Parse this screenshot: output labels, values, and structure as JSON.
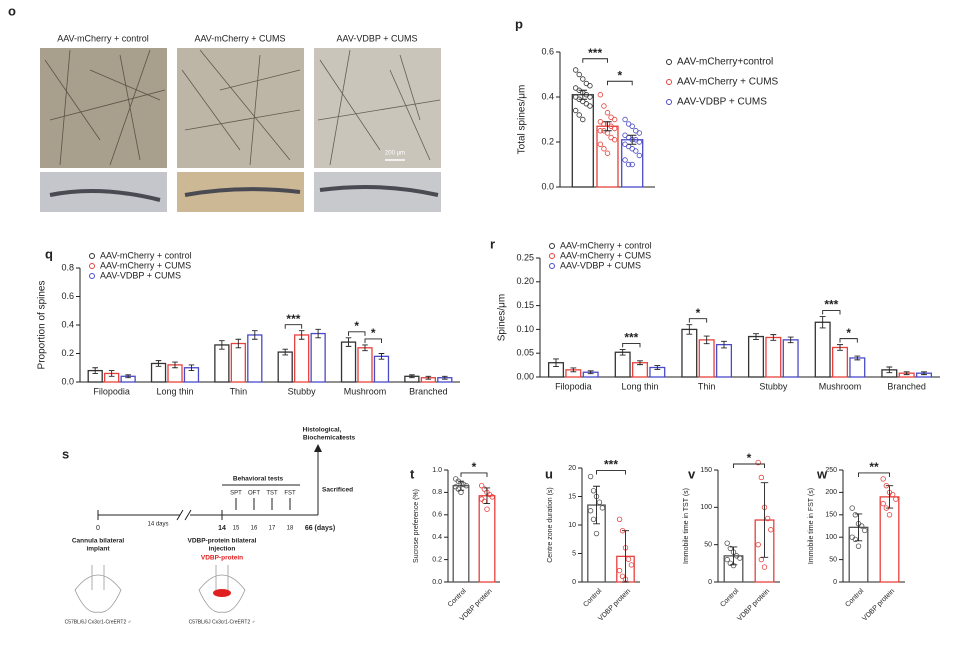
{
  "panel_o": {
    "panel": "o",
    "images": [
      {
        "label": "AAV-mCherry + control"
      },
      {
        "label": "AAV-mCherry + CUMS"
      },
      {
        "label": "AAV-VDBP + CUMS"
      }
    ],
    "scale_label": "200 μm"
  },
  "panel_s": {
    "panel": "s",
    "day_start": "0",
    "gap_label": "14 days",
    "day_inject": "14",
    "test_days": [
      "15",
      "16",
      "17",
      "18"
    ],
    "day_end": "66 (days)",
    "behavioral_label": "Behavioral tests",
    "tests": [
      "SPT",
      "OFT",
      "TST",
      "FST"
    ],
    "end_test_lines": [
      "Histological,",
      "Biochemical",
      "tests"
    ],
    "sacrificed": "Sacrificed",
    "implant_lines": [
      "Cannula bilateral",
      "implant"
    ],
    "injection_lines": [
      "VDBP-protein bilateral",
      "injection"
    ],
    "injection_drug": "VDBP-protein",
    "mouse_label": "C57BL/6J Cx3cr1-CreERT2 ♂"
  },
  "chart_data": [
    {
      "type": "bar",
      "panel": "p",
      "y_label": "Total spines/μm",
      "categories": [
        null
      ],
      "series": [
        {
          "name": "AAV-mCherry+control",
          "color": "#333333",
          "values": [
            0.41
          ],
          "errors": [
            0.02
          ],
          "points": [
            [
              0.52,
              0.5,
              0.48,
              0.46,
              0.45,
              0.44,
              0.43,
              0.42,
              0.41,
              0.4,
              0.4,
              0.39,
              0.38,
              0.37,
              0.36,
              0.34,
              0.32,
              0.3
            ]
          ]
        },
        {
          "name": "AAV-mCherry + CUMS",
          "color": "#e8413c",
          "values": [
            0.27
          ],
          "errors": [
            0.02
          ],
          "points": [
            [
              0.41,
              0.36,
              0.33,
              0.31,
              0.3,
              0.29,
              0.28,
              0.28,
              0.27,
              0.26,
              0.25,
              0.25,
              0.24,
              0.22,
              0.21,
              0.19,
              0.17,
              0.15
            ]
          ]
        },
        {
          "name": "AAV-VDBP + CUMS",
          "color": "#4a4ac8",
          "values": [
            0.21
          ],
          "errors": [
            0.02
          ],
          "points": [
            [
              0.3,
              0.28,
              0.27,
              0.25,
              0.24,
              0.23,
              0.22,
              0.21,
              0.21,
              0.2,
              0.19,
              0.18,
              0.17,
              0.16,
              0.14,
              0.12,
              0.1,
              0.1
            ]
          ]
        }
      ],
      "ylim": [
        0,
        0.6
      ],
      "yticks": [
        {
          "value": 0,
          "label": "0.0"
        },
        {
          "value": 0.2,
          "label": "0.2"
        },
        {
          "value": 0.4,
          "label": "0.4"
        },
        {
          "value": 0.6,
          "label": "0.6"
        }
      ],
      "annotations": [
        {
          "text": "***"
        },
        {
          "text": "*"
        }
      ],
      "legend": "right"
    },
    {
      "type": "bar",
      "panel": "q",
      "y_label": "Proportion of spines",
      "categories": [
        "Filopodia",
        "Long thin",
        "Thin",
        "Stubby",
        "Mushroom",
        "Branched"
      ],
      "series": [
        {
          "name": "AAV-mCherry + control",
          "color": "#333333",
          "values": [
            0.08,
            0.13,
            0.26,
            0.21,
            0.28,
            0.04
          ],
          "errors": [
            0.02,
            0.02,
            0.03,
            0.02,
            0.03,
            0.01
          ]
        },
        {
          "name": "AAV-mCherry + CUMS",
          "color": "#e8413c",
          "values": [
            0.06,
            0.12,
            0.27,
            0.33,
            0.24,
            0.03
          ],
          "errors": [
            0.02,
            0.02,
            0.03,
            0.03,
            0.02,
            0.01
          ]
        },
        {
          "name": "AAV-VDBP + CUMS",
          "color": "#4a4ac8",
          "values": [
            0.04,
            0.1,
            0.33,
            0.34,
            0.18,
            0.03
          ],
          "errors": [
            0.01,
            0.02,
            0.03,
            0.03,
            0.02,
            0.01
          ]
        }
      ],
      "ylim": [
        0,
        0.8
      ],
      "yticks": [
        {
          "value": 0,
          "label": "0.0"
        },
        {
          "value": 0.2,
          "label": "0.2"
        },
        {
          "value": 0.4,
          "label": "0.4"
        },
        {
          "value": 0.6,
          "label": "0.6"
        },
        {
          "value": 0.8,
          "label": "0.8"
        }
      ],
      "annotations": [
        {
          "text": "***",
          "category": "Stubby"
        },
        {
          "text": "*",
          "category": "Mushroom"
        },
        {
          "text": "*",
          "category": "Mushroom"
        }
      ],
      "legend": "top-left"
    },
    {
      "type": "bar",
      "panel": "r",
      "y_label": "Spines/μm",
      "categories": [
        "Filopodia",
        "Long thin",
        "Thin",
        "Stubby",
        "Mushroom",
        "Branched"
      ],
      "series": [
        {
          "name": "AAV-mCherry + control",
          "color": "#333333",
          "values": [
            0.03,
            0.052,
            0.1,
            0.085,
            0.115,
            0.015
          ],
          "errors": [
            0.008,
            0.006,
            0.01,
            0.006,
            0.012,
            0.006
          ]
        },
        {
          "name": "AAV-mCherry + CUMS",
          "color": "#e8413c",
          "values": [
            0.015,
            0.03,
            0.078,
            0.083,
            0.062,
            0.008
          ],
          "errors": [
            0.004,
            0.004,
            0.008,
            0.006,
            0.006,
            0.003
          ]
        },
        {
          "name": "AAV-VDBP + CUMS",
          "color": "#4a4ac8",
          "values": [
            0.01,
            0.02,
            0.068,
            0.078,
            0.04,
            0.008
          ],
          "errors": [
            0.003,
            0.004,
            0.007,
            0.006,
            0.004,
            0.003
          ]
        }
      ],
      "ylim": [
        0,
        0.25
      ],
      "yticks": [
        {
          "value": 0,
          "label": "0.00"
        },
        {
          "value": 0.05,
          "label": "0.05"
        },
        {
          "value": 0.1,
          "label": "0.10"
        },
        {
          "value": 0.15,
          "label": "0.15"
        },
        {
          "value": 0.2,
          "label": "0.20"
        },
        {
          "value": 0.25,
          "label": "0.25"
        }
      ],
      "annotations": [
        {
          "text": "***",
          "category": "Long thin"
        },
        {
          "text": "*",
          "category": "Thin"
        },
        {
          "text": "***",
          "category": "Mushroom"
        },
        {
          "text": "*",
          "category": "Mushroom"
        }
      ],
      "legend": "top-left"
    },
    {
      "type": "bar",
      "panel": "t",
      "y_label": "Sucrose preference (%)",
      "categories": [
        "Control",
        "VDBP protein"
      ],
      "colors": [
        "#555555",
        "#e8413c"
      ],
      "values": [
        0.86,
        0.77
      ],
      "errors": [
        0.04,
        0.07
      ],
      "points": [
        [
          0.92,
          0.9,
          0.88,
          0.87,
          0.86,
          0.85,
          0.83,
          0.8
        ],
        [
          0.86,
          0.83,
          0.8,
          0.78,
          0.76,
          0.74,
          0.72,
          0.65
        ]
      ],
      "ylim": [
        0,
        1.0
      ],
      "yticks": [
        {
          "value": 0,
          "label": "0.0"
        },
        {
          "value": 0.2,
          "label": "0.2"
        },
        {
          "value": 0.4,
          "label": "0.4"
        },
        {
          "value": 0.6,
          "label": "0.6"
        },
        {
          "value": 0.8,
          "label": "0.8"
        },
        {
          "value": 1.0,
          "label": "1.0"
        }
      ],
      "annotations": [
        {
          "text": "*"
        }
      ]
    },
    {
      "type": "bar",
      "panel": "u",
      "y_label": "Centre zone duration (s)",
      "categories": [
        "Control",
        "VDBP protein"
      ],
      "colors": [
        "#555555",
        "#e8413c"
      ],
      "values": [
        13.5,
        4.5
      ],
      "errors": [
        3.3,
        4.5
      ],
      "points": [
        [
          18.5,
          16,
          15,
          14,
          13,
          12.5,
          11,
          8.5
        ],
        [
          11,
          9,
          6,
          4,
          3,
          2,
          1,
          0.5
        ]
      ],
      "ylim": [
        0,
        20
      ],
      "yticks": [
        0,
        5,
        10,
        15,
        20
      ],
      "annotations": [
        {
          "text": "***"
        }
      ]
    },
    {
      "type": "bar",
      "panel": "v",
      "y_label": "Immobile time in TST (s)",
      "categories": [
        "Control",
        "VDBP protein"
      ],
      "colors": [
        "#555555",
        "#e8413c"
      ],
      "values": [
        35,
        83
      ],
      "errors": [
        12,
        50
      ],
      "points": [
        [
          52,
          45,
          40,
          35,
          32,
          30,
          25,
          22
        ],
        [
          160,
          140,
          100,
          85,
          70,
          50,
          30,
          20
        ]
      ],
      "ylim": [
        0,
        150
      ],
      "yticks": [
        0,
        50,
        100,
        150
      ],
      "annotations": [
        {
          "text": "*"
        }
      ]
    },
    {
      "type": "bar",
      "panel": "w",
      "y_label": "Immobile time in FST (s)",
      "categories": [
        "Control",
        "VDBP protein"
      ],
      "colors": [
        "#555555",
        "#e8413c"
      ],
      "values": [
        122,
        190
      ],
      "errors": [
        30,
        25
      ],
      "points": [
        [
          165,
          150,
          130,
          125,
          115,
          100,
          95,
          80
        ],
        [
          230,
          215,
          200,
          195,
          185,
          175,
          165,
          150
        ]
      ],
      "ylim": [
        0,
        250
      ],
      "yticks": [
        0,
        50,
        100,
        150,
        200,
        250
      ],
      "annotations": [
        {
          "text": "**"
        }
      ]
    }
  ]
}
